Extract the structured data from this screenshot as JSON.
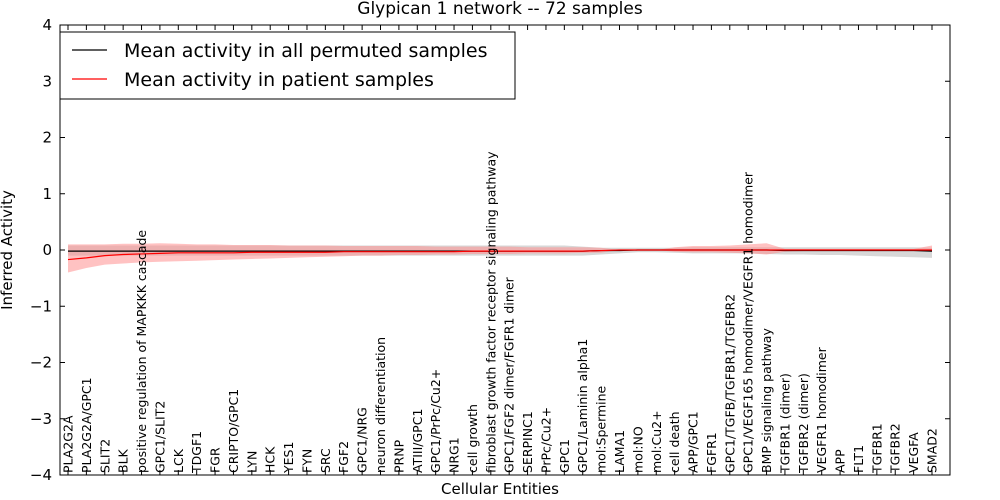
{
  "chart_data": {
    "type": "line",
    "title": "Glypican 1 network -- 72 samples",
    "xlabel": "Cellular Entities",
    "ylabel": "Inferred Activity",
    "ylim": [
      -4,
      4
    ],
    "yticks": [
      -4,
      -3,
      -2,
      -1,
      0,
      1,
      2,
      3,
      4
    ],
    "ytick_labels": [
      "−4",
      "−3",
      "−2",
      "−1",
      "0",
      "1",
      "2",
      "3",
      "4"
    ],
    "grid": false,
    "legend_position": "top-left",
    "categories": [
      "PLA2G2A",
      "PLA2G2A/GPC1",
      "SLIT2",
      "BLK",
      "positive regulation of MAPKKK cascade",
      "GPC1/SLIT2",
      "LCK",
      "TDGF1",
      "FGR",
      "CRIPTO/GPC1",
      "LYN",
      "HCK",
      "YES1",
      "FYN",
      "SRC",
      "FGF2",
      "GPC1/NRG",
      "neuron differentiation",
      "PRNP",
      "ATIII/GPC1",
      "GPC1/PrPc/Cu2+",
      "NRG1",
      "cell growth",
      "fibroblast growth factor receptor signaling pathway",
      "GPC1/FGF2 dimer/FGFR1 dimer",
      "SERPINC1",
      "PrPc/Cu2+",
      "GPC1",
      "GPC1/Laminin alpha1",
      "mol:Spermine",
      "LAMA1",
      "mol:NO",
      "mol:Cu2+",
      "cell death",
      "APP/GPC1",
      "FGFR1",
      "GPC1/TGFB/TGFBR1/TGFBR2",
      "GPC1/VEGF165 homodimer/VEGFR1 homodimer",
      "BMP signaling pathway",
      "TGFBR1 (dimer)",
      "TGFBR2 (dimer)",
      "VEGFR1 homodimer",
      "APP",
      "FLT1",
      "TGFBR1",
      "TGFBR2",
      "VEGFA",
      "SMAD2"
    ],
    "series": [
      {
        "name": "Mean activity in all permuted samples",
        "color": "#000000",
        "band_color": "#b0b0b0",
        "values": [
          -0.02,
          -0.02,
          -0.02,
          -0.02,
          -0.02,
          -0.02,
          -0.02,
          -0.02,
          -0.02,
          -0.02,
          -0.02,
          -0.02,
          -0.02,
          -0.02,
          -0.02,
          -0.02,
          -0.02,
          -0.02,
          -0.02,
          -0.02,
          -0.02,
          -0.02,
          -0.02,
          -0.02,
          -0.02,
          -0.02,
          -0.02,
          -0.02,
          -0.02,
          -0.01,
          -0.01,
          0.0,
          0.0,
          0.0,
          0.0,
          0.0,
          0.0,
          0.0,
          0.0,
          -0.01,
          -0.01,
          -0.01,
          -0.01,
          -0.01,
          -0.01,
          -0.01,
          -0.01,
          -0.02
        ],
        "lower": [
          -0.1,
          -0.1,
          -0.1,
          -0.1,
          -0.1,
          -0.1,
          -0.1,
          -0.1,
          -0.1,
          -0.1,
          -0.1,
          -0.1,
          -0.1,
          -0.1,
          -0.1,
          -0.1,
          -0.1,
          -0.1,
          -0.1,
          -0.1,
          -0.1,
          -0.1,
          -0.1,
          -0.1,
          -0.1,
          -0.1,
          -0.1,
          -0.1,
          -0.1,
          -0.08,
          -0.06,
          -0.04,
          -0.04,
          -0.05,
          -0.06,
          -0.06,
          -0.06,
          -0.06,
          -0.07,
          -0.08,
          -0.08,
          -0.09,
          -0.09,
          -0.1,
          -0.11,
          -0.12,
          -0.13,
          -0.14
        ],
        "upper": [
          0.08,
          0.08,
          0.08,
          0.08,
          0.08,
          0.08,
          0.08,
          0.08,
          0.08,
          0.08,
          0.08,
          0.08,
          0.08,
          0.08,
          0.08,
          0.08,
          0.08,
          0.08,
          0.08,
          0.08,
          0.08,
          0.08,
          0.08,
          0.08,
          0.08,
          0.08,
          0.08,
          0.08,
          0.06,
          0.04,
          0.04,
          0.04,
          0.04,
          0.04,
          0.05,
          0.05,
          0.05,
          0.05,
          0.05,
          0.05,
          0.05,
          0.05,
          0.05,
          0.05,
          0.05,
          0.05,
          0.05,
          0.04
        ]
      },
      {
        "name": "Mean activity in patient samples",
        "color": "#ff0000",
        "band_color": "#ff9090",
        "values": [
          -0.17,
          -0.14,
          -0.1,
          -0.08,
          -0.07,
          -0.06,
          -0.05,
          -0.05,
          -0.05,
          -0.05,
          -0.04,
          -0.04,
          -0.04,
          -0.04,
          -0.04,
          -0.03,
          -0.03,
          -0.03,
          -0.03,
          -0.03,
          -0.03,
          -0.03,
          -0.02,
          -0.02,
          -0.02,
          -0.02,
          -0.02,
          -0.02,
          -0.02,
          -0.01,
          0.0,
          0.0,
          0.0,
          0.0,
          0.0,
          0.0,
          0.0,
          0.0,
          0.0,
          0.0,
          0.0,
          0.0,
          0.0,
          0.0,
          0.0,
          0.0,
          0.0,
          0.0
        ],
        "lower": [
          -0.4,
          -0.32,
          -0.26,
          -0.24,
          -0.22,
          -0.21,
          -0.2,
          -0.19,
          -0.18,
          -0.17,
          -0.16,
          -0.15,
          -0.14,
          -0.13,
          -0.12,
          -0.11,
          -0.1,
          -0.1,
          -0.09,
          -0.09,
          -0.08,
          -0.08,
          -0.07,
          -0.07,
          -0.07,
          -0.06,
          -0.06,
          -0.06,
          -0.05,
          -0.05,
          0.0,
          0.0,
          0.0,
          -0.03,
          -0.04,
          -0.04,
          -0.05,
          -0.06,
          -0.08,
          -0.03,
          -0.02,
          -0.02,
          -0.02,
          -0.02,
          -0.02,
          -0.02,
          -0.02,
          -0.01
        ],
        "upper": [
          0.1,
          0.1,
          0.1,
          0.11,
          0.11,
          0.12,
          0.11,
          0.1,
          0.1,
          0.09,
          0.09,
          0.09,
          0.08,
          0.08,
          0.08,
          0.07,
          0.07,
          0.07,
          0.07,
          0.07,
          0.06,
          0.06,
          0.06,
          0.06,
          0.06,
          0.05,
          0.05,
          0.05,
          0.05,
          0.04,
          0.0,
          0.0,
          0.0,
          0.05,
          0.07,
          0.07,
          0.08,
          0.1,
          0.12,
          0.02,
          0.02,
          0.02,
          0.02,
          0.02,
          0.02,
          0.02,
          0.02,
          0.08
        ]
      }
    ]
  }
}
